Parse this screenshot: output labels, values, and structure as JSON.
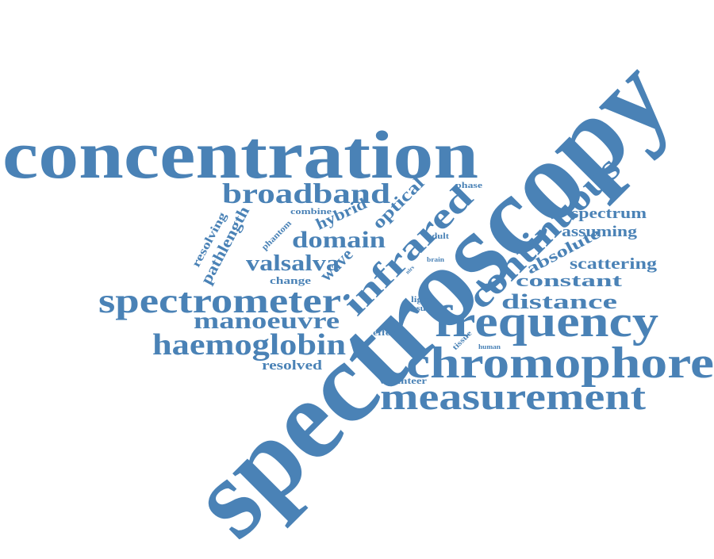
{
  "style": {
    "word_color": "#4a82b6",
    "background": "#ffffff"
  },
  "words": [
    {
      "id": "spectroscopy",
      "text": "spectroscopy",
      "orientation": "diagonal-up"
    },
    {
      "id": "concentration",
      "text": "concentration",
      "orientation": "horizontal"
    },
    {
      "id": "continuous",
      "text": "continuous",
      "orientation": "diagonal-up"
    },
    {
      "id": "infrared",
      "text": "infrared",
      "orientation": "diagonal-up"
    },
    {
      "id": "chromophore",
      "text": "chromophore",
      "orientation": "horizontal"
    },
    {
      "id": "measurement",
      "text": "measurement",
      "orientation": "horizontal"
    },
    {
      "id": "frequency",
      "text": "frequency",
      "orientation": "horizontal"
    },
    {
      "id": "spectrometer",
      "text": "spectrometer",
      "orientation": "horizontal"
    },
    {
      "id": "haemoglobin",
      "text": "haemoglobin",
      "orientation": "horizontal"
    },
    {
      "id": "manoeuvre",
      "text": "manoeuvre",
      "orientation": "horizontal"
    },
    {
      "id": "broadband",
      "text": "broadband",
      "orientation": "horizontal"
    },
    {
      "id": "domain",
      "text": "domain",
      "orientation": "horizontal"
    },
    {
      "id": "valsalva",
      "text": "valsalva",
      "orientation": "horizontal"
    },
    {
      "id": "distance",
      "text": "distance",
      "orientation": "horizontal"
    },
    {
      "id": "constant",
      "text": "constant",
      "orientation": "horizontal"
    },
    {
      "id": "scattering",
      "text": "scattering",
      "orientation": "horizontal"
    },
    {
      "id": "spectrum",
      "text": "spectrum",
      "orientation": "horizontal"
    },
    {
      "id": "assuming",
      "text": "assuming",
      "orientation": "horizontal"
    },
    {
      "id": "absolute",
      "text": "absolute",
      "orientation": "diagonal-up"
    },
    {
      "id": "optical",
      "text": "optical",
      "orientation": "diagonal-up"
    },
    {
      "id": "hybrid",
      "text": "hybrid",
      "orientation": "diagonal-up"
    },
    {
      "id": "wave",
      "text": "wave",
      "orientation": "diagonal-up"
    },
    {
      "id": "pathlength",
      "text": "pathlength",
      "orientation": "diagonal-up"
    },
    {
      "id": "resolving",
      "text": "resolving",
      "orientation": "diagonal-up"
    },
    {
      "id": "resolved",
      "text": "resolved",
      "orientation": "horizontal"
    },
    {
      "id": "change",
      "text": "change",
      "orientation": "horizontal"
    },
    {
      "id": "combine",
      "text": "combine",
      "orientation": "horizontal"
    },
    {
      "id": "phantom",
      "text": "phantom",
      "orientation": "diagonal-up"
    },
    {
      "id": "phase",
      "text": "phase",
      "orientation": "horizontal"
    },
    {
      "id": "adult",
      "text": "adult",
      "orientation": "horizontal"
    },
    {
      "id": "brain",
      "text": "brain",
      "orientation": "horizontal"
    },
    {
      "id": "nirs",
      "text": "nirs",
      "orientation": "diagonal-up"
    },
    {
      "id": "light",
      "text": "light",
      "orientation": "horizontal"
    },
    {
      "id": "result",
      "text": "result",
      "orientation": "horizontal"
    },
    {
      "id": "effect",
      "text": "effect",
      "orientation": "horizontal"
    },
    {
      "id": "tissue",
      "text": "tissue",
      "orientation": "diagonal-up"
    },
    {
      "id": "human",
      "text": "human",
      "orientation": "horizontal"
    },
    {
      "id": "volunteer",
      "text": "volunteer",
      "orientation": "horizontal"
    }
  ]
}
